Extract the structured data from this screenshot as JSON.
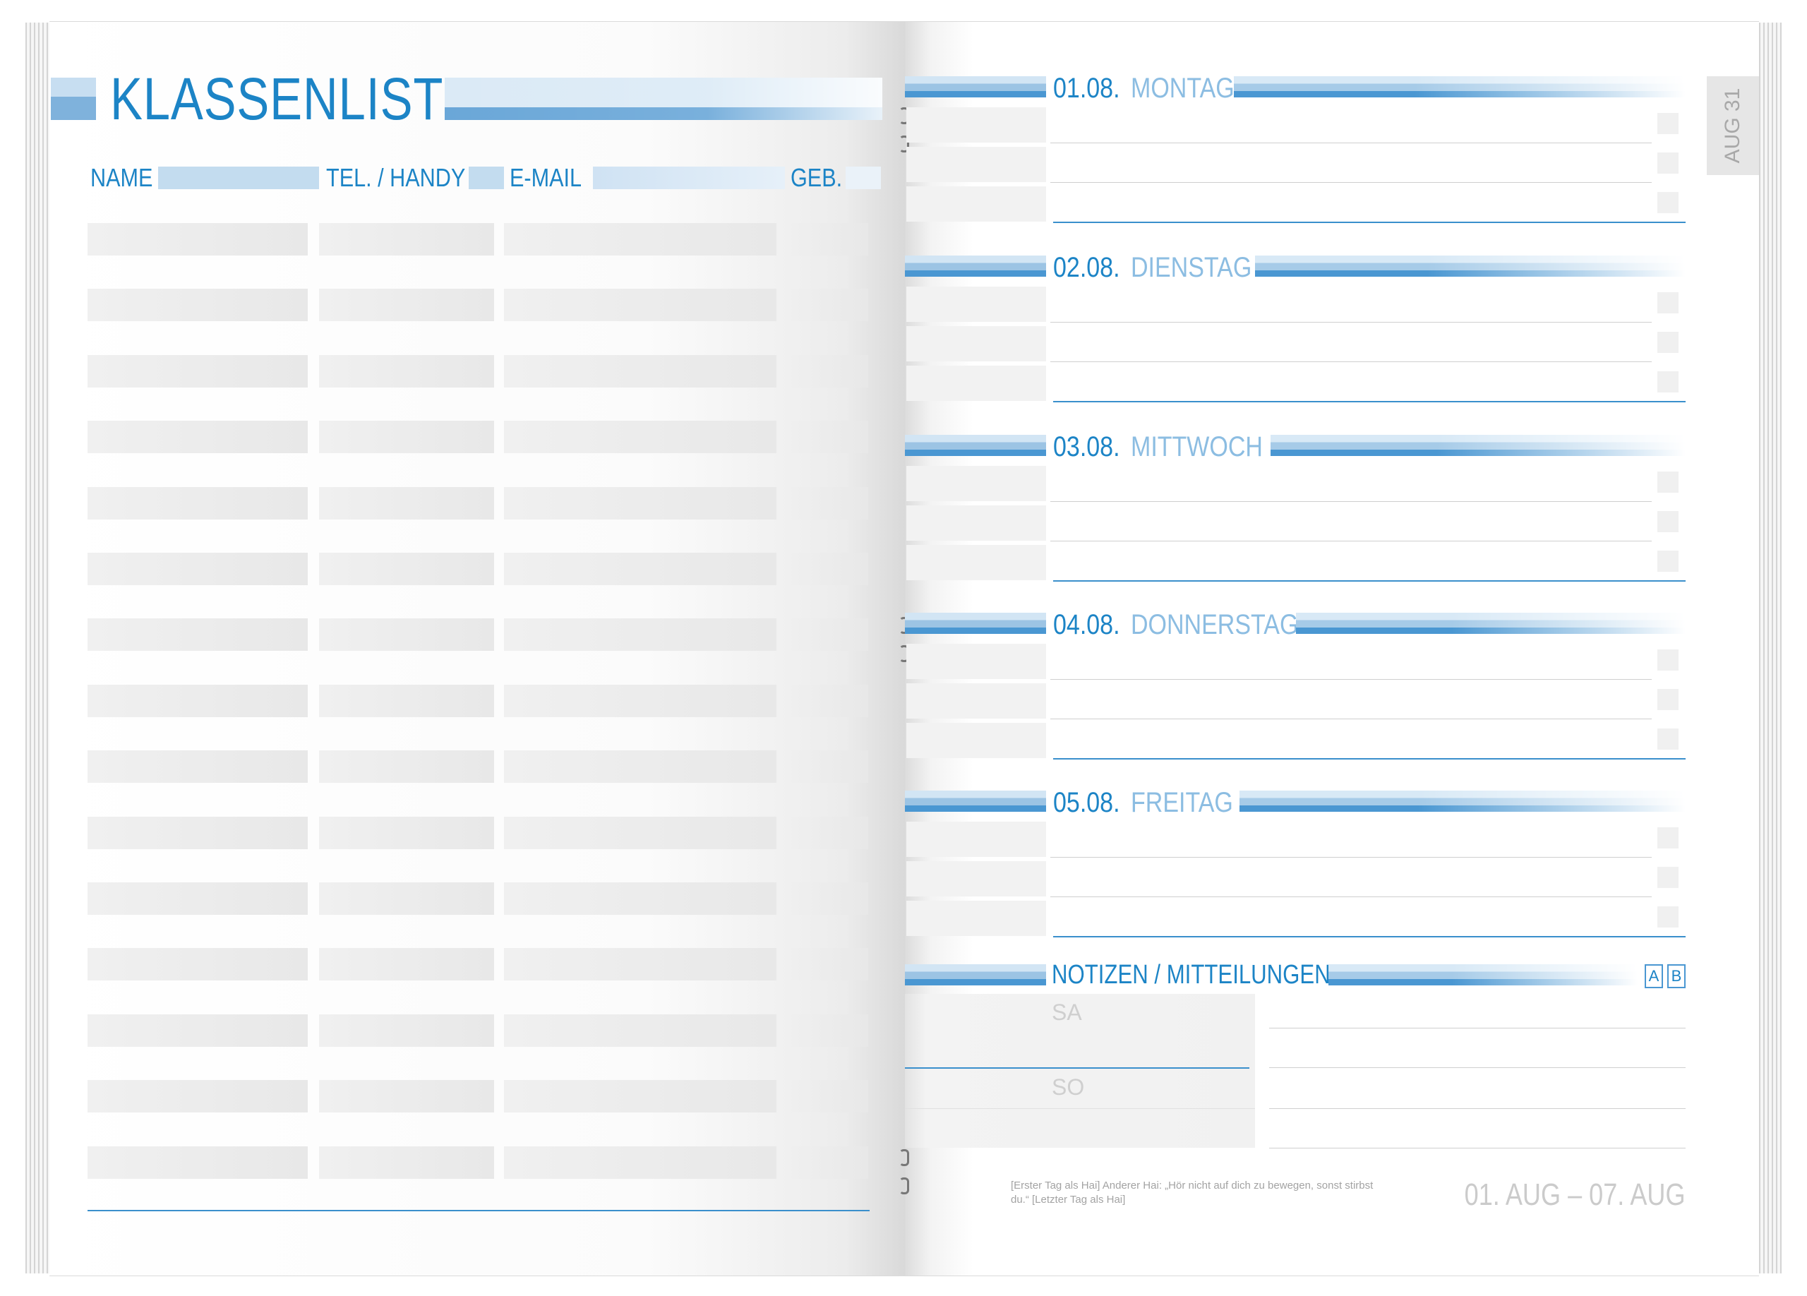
{
  "left_page": {
    "title": "KLASSENLISTE",
    "columns": [
      "NAME",
      "TEL. / HANDY",
      "E-MAIL",
      "GEB."
    ],
    "row_count": 15
  },
  "right_page": {
    "tab_label": "AUG 31",
    "days": [
      {
        "date": "01.08.",
        "name": "MONTAG"
      },
      {
        "date": "02.08.",
        "name": "DIENSTAG"
      },
      {
        "date": "03.08.",
        "name": "MITTWOCH"
      },
      {
        "date": "04.08.",
        "name": "DONNERSTAG"
      },
      {
        "date": "05.08.",
        "name": "FREITAG"
      }
    ],
    "notes": {
      "title": "NOTIZEN / MITTEILUNGEN",
      "a_label": "A",
      "b_label": "B",
      "sa_label": "SA",
      "so_label": "SO"
    },
    "quote": "[Erster Tag als Hai] Anderer Hai: „Hör nicht auf dich zu bewegen, sonst stirbst du.“ [Letzter Tag als Hai]",
    "date_range": "01. AUG – 07. AUG"
  },
  "colors": {
    "accent": "#1c84c6",
    "accent_light": "#8cbde2",
    "cell_grey": "#eeeeee"
  }
}
